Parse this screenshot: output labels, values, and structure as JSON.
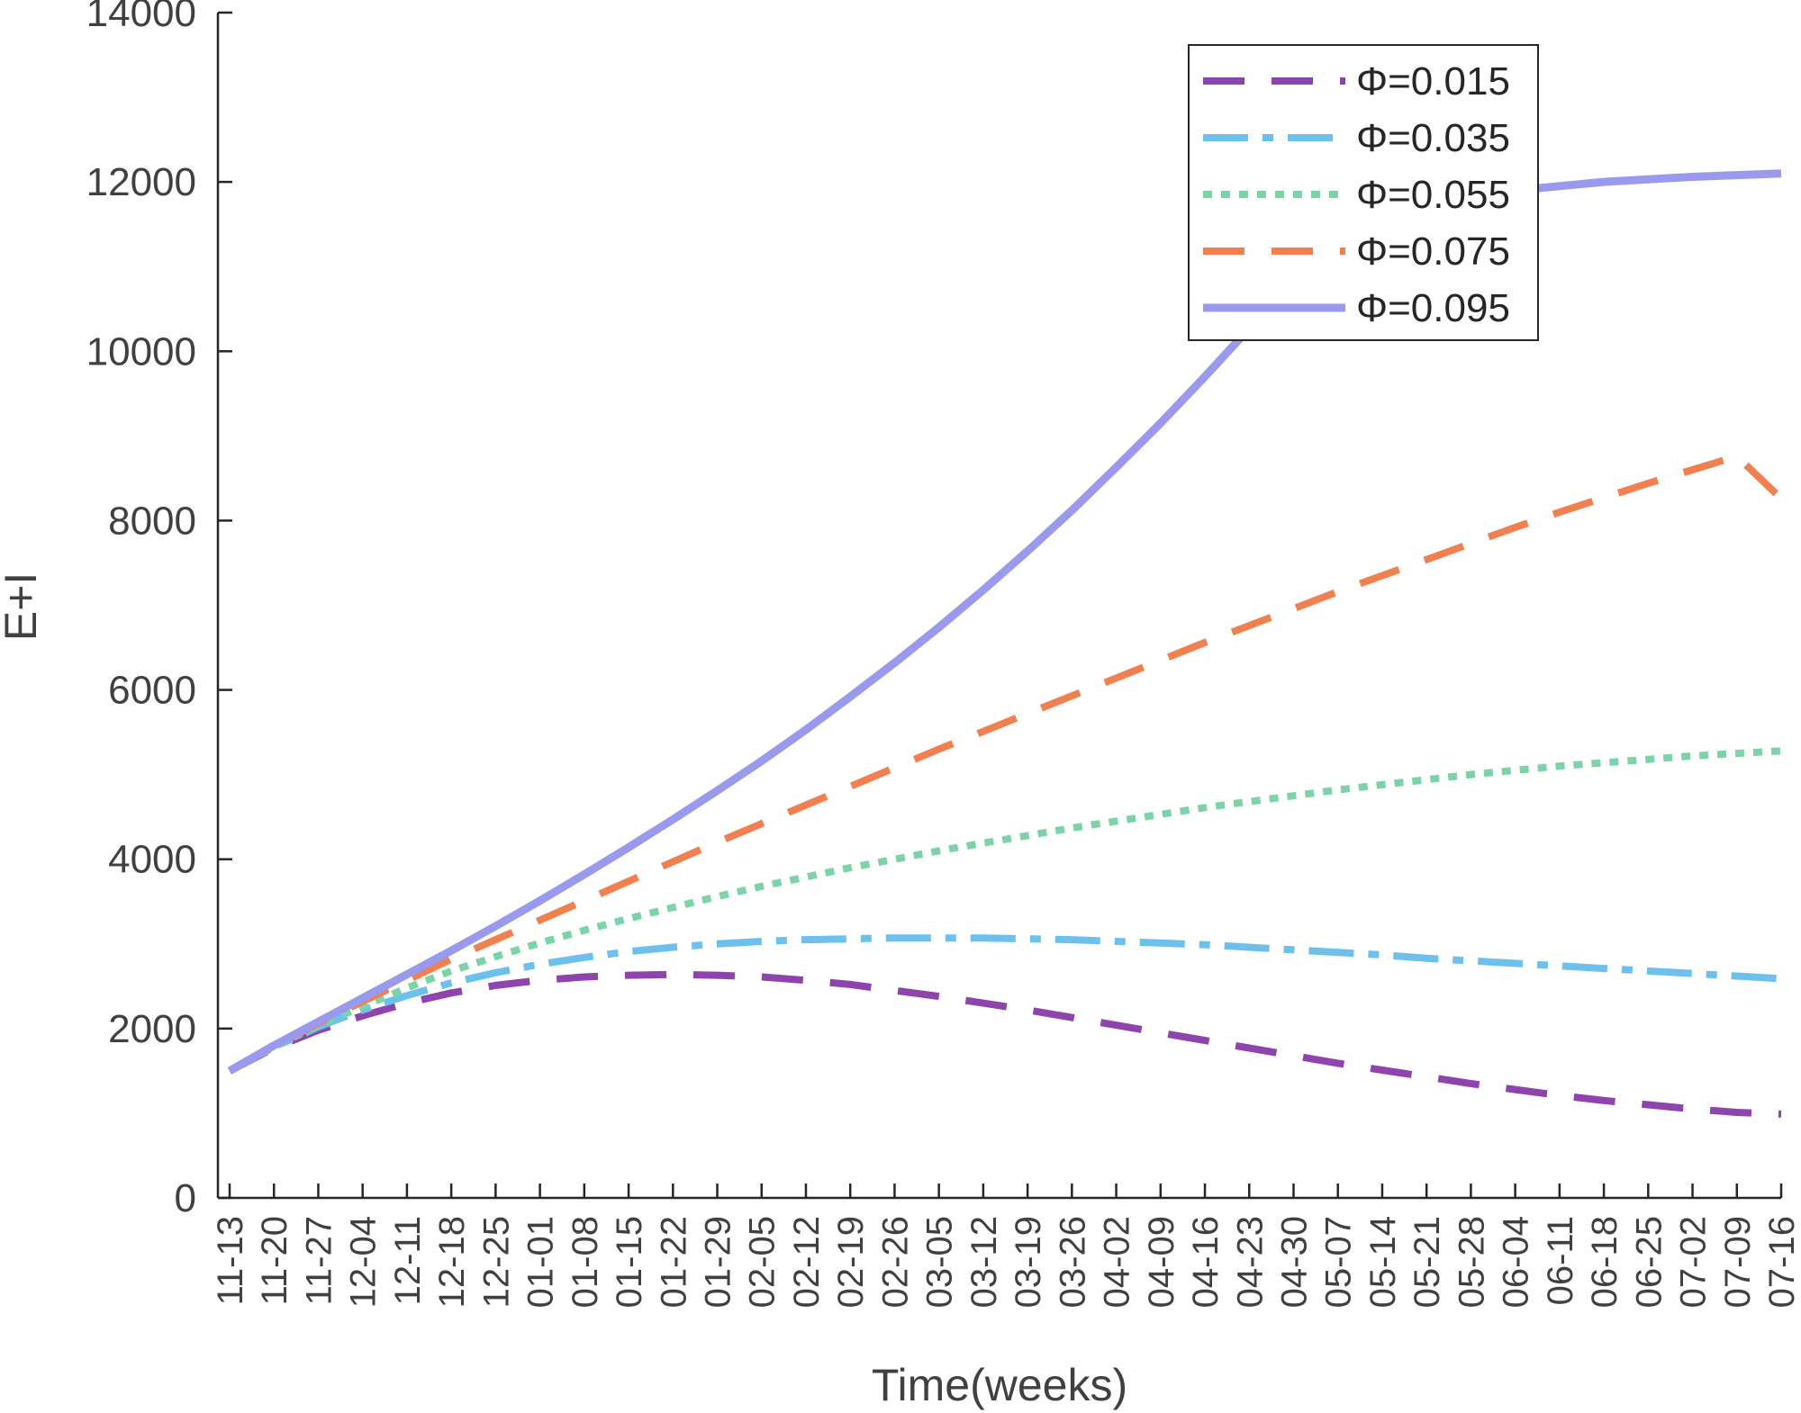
{
  "chart_data": {
    "type": "line",
    "title": "",
    "xlabel": "Time(weeks)",
    "ylabel": "E+I",
    "ylim": [
      0,
      14000
    ],
    "yticks": [
      0,
      2000,
      4000,
      6000,
      8000,
      10000,
      12000,
      14000
    ],
    "ytick_labels": [
      "0",
      "2000",
      "4000",
      "6000",
      "8000",
      "10000",
      "12000",
      "14000"
    ],
    "categories": [
      "11-13",
      "11-20",
      "11-27",
      "12-04",
      "12-11",
      "12-18",
      "12-25",
      "01-01",
      "01-08",
      "01-15",
      "01-22",
      "01-29",
      "02-05",
      "02-12",
      "02-19",
      "02-26",
      "03-05",
      "03-12",
      "03-19",
      "03-26",
      "04-02",
      "04-09",
      "04-16",
      "04-23",
      "04-30",
      "05-07",
      "05-14",
      "05-21",
      "05-28",
      "06-04",
      "06-11",
      "06-18",
      "06-25",
      "07-02",
      "07-09",
      "07-16"
    ],
    "grid": false,
    "legend_position": "top-right",
    "series": [
      {
        "name": "Φ=0.015",
        "color": "#8e44ad",
        "style": "dash",
        "values": [
          1500,
          1770,
          1980,
          2150,
          2300,
          2420,
          2510,
          2570,
          2610,
          2630,
          2640,
          2630,
          2610,
          2570,
          2520,
          2450,
          2380,
          2300,
          2220,
          2130,
          2040,
          1950,
          1860,
          1770,
          1680,
          1590,
          1510,
          1430,
          1350,
          1280,
          1210,
          1150,
          1100,
          1050,
          1010,
          990
        ]
      },
      {
        "name": "Φ=0.035",
        "color": "#6ec0ec",
        "style": "dashdot",
        "values": [
          1500,
          1780,
          2020,
          2220,
          2390,
          2540,
          2660,
          2760,
          2840,
          2910,
          2960,
          3000,
          3030,
          3050,
          3060,
          3070,
          3070,
          3070,
          3060,
          3050,
          3030,
          3010,
          2990,
          2960,
          2930,
          2900,
          2870,
          2830,
          2800,
          2770,
          2740,
          2710,
          2680,
          2650,
          2620,
          2590
        ]
      },
      {
        "name": "Φ=0.055",
        "color": "#7dd3a8",
        "style": "dot",
        "values": [
          1500,
          1780,
          2040,
          2260,
          2480,
          2680,
          2850,
          3010,
          3160,
          3300,
          3430,
          3560,
          3680,
          3790,
          3900,
          4000,
          4100,
          4190,
          4280,
          4370,
          4450,
          4530,
          4610,
          4680,
          4750,
          4820,
          4880,
          4940,
          5000,
          5050,
          5100,
          5140,
          5180,
          5220,
          5250,
          5280
        ]
      },
      {
        "name": "Φ=0.075",
        "color": "#f0804f",
        "style": "longdash",
        "values": [
          1500,
          1790,
          2060,
          2320,
          2570,
          2820,
          3050,
          3280,
          3510,
          3740,
          3970,
          4200,
          4420,
          4640,
          4860,
          5080,
          5300,
          5510,
          5720,
          5930,
          6140,
          6350,
          6560,
          6760,
          6960,
          7160,
          7350,
          7540,
          7730,
          7920,
          8100,
          8270,
          8440,
          8600,
          8760,
          8260
        ]
      },
      {
        "name": "Φ=0.095",
        "color": "#9999ee",
        "style": "solid",
        "values": [
          1500,
          1800,
          2080,
          2360,
          2640,
          2920,
          3210,
          3510,
          3820,
          4140,
          4470,
          4810,
          5160,
          5530,
          5920,
          6320,
          6740,
          7180,
          7640,
          8120,
          8630,
          9150,
          9700,
          10270,
          10860,
          11480,
          11500,
          11700,
          11800,
          11900,
          11950,
          12000,
          12030,
          12060,
          12080,
          12100
        ]
      }
    ]
  }
}
